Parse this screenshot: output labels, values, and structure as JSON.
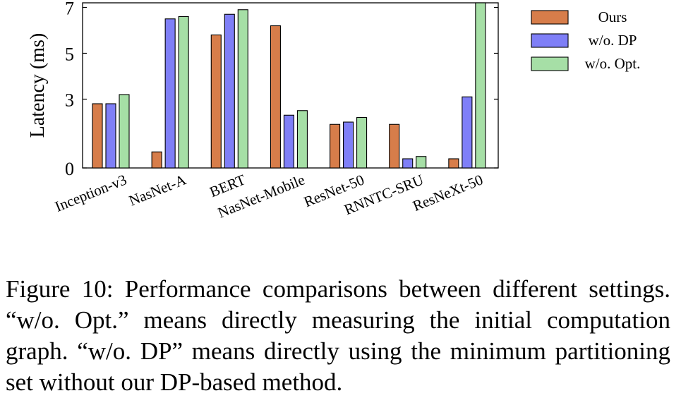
{
  "chart_data": {
    "type": "bar",
    "ylabel": "Latency (ms)",
    "ylim": [
      0,
      7.2
    ],
    "yticks": [
      "0",
      "3",
      "5",
      "7"
    ],
    "yticks_values": [
      0,
      3,
      5,
      7
    ],
    "categories": [
      "Inception-v3",
      "NasNet-A",
      "BERT",
      "NasNet-Mobile",
      "ResNet-50",
      "RNNTC-SRU",
      "ResNeXt-50"
    ],
    "series": [
      {
        "name": "Ours",
        "color": "#d77d4a",
        "values": [
          2.8,
          0.7,
          5.8,
          6.2,
          1.9,
          1.9,
          0.4
        ]
      },
      {
        "name": "w/o. DP",
        "color": "#7f7ff7",
        "values": [
          2.8,
          6.5,
          6.7,
          2.3,
          2.0,
          0.4,
          3.1
        ]
      },
      {
        "name": "w/o. Opt.",
        "color": "#a6dfa6",
        "values": [
          3.2,
          6.6,
          6.9,
          2.5,
          2.2,
          0.5,
          7.2
        ]
      }
    ],
    "legend": "top-right",
    "grid": false
  },
  "caption": "Figure 10: Performance comparisons between different set­tings. “w/o. Opt.” means directly measuring the initial com­putation graph. “w/o. DP” means directly using the mini­mum partitioning set without our DP-based method."
}
